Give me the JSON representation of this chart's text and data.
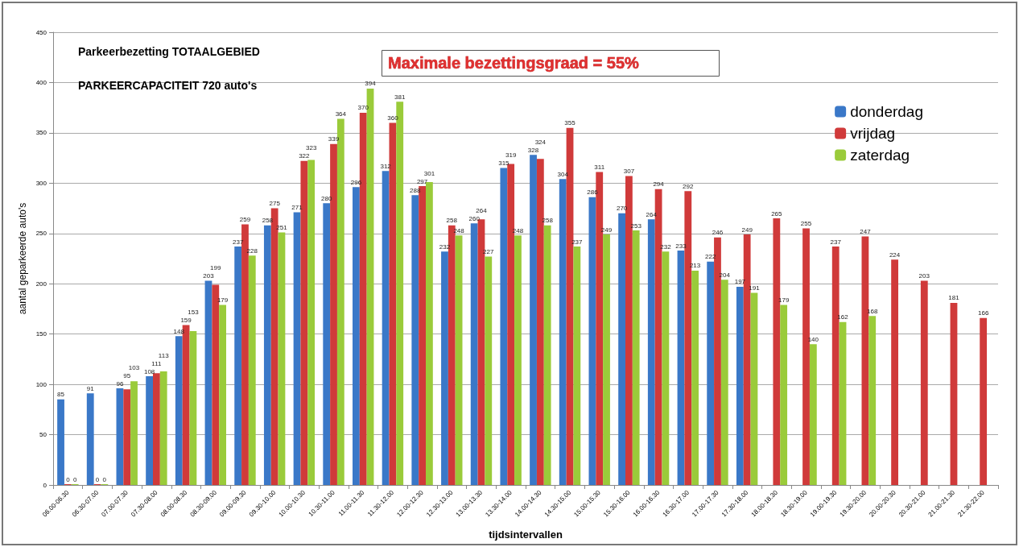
{
  "chart_data": {
    "type": "bar",
    "title": "Parkeerbezetting TOTAALGEBIED",
    "subtitle": "PARKEERCAPACITEIT 720 auto's",
    "annotations": [
      "Maximale bezettingsgraad = 55%"
    ],
    "xlabel": "tijdsintervallen",
    "ylabel": "aantal geparkeerde auto's",
    "categories": [
      "06.00-06.30",
      "06.30-07.00",
      "07.00-07.30",
      "07.30-08.00",
      "08.00-08.30",
      "08.30-09.00",
      "09.00-09.30",
      "09.30-10.00",
      "10.00-10.30",
      "10.30-11.00",
      "11.00-11.30",
      "11.30-12.00",
      "12.00-12.30",
      "12.30-13.00",
      "13.00-13.30",
      "13.30-14.00",
      "14.00-14.30",
      "14.30-15.00",
      "15.00-15.30",
      "15.30-16.00",
      "16.00-16.30",
      "16.30-17.00",
      "17.00-17.30",
      "17.30-18.00",
      "18.00-18.30",
      "18.30-19.00",
      "19.00-19.30",
      "19.30-20.00",
      "20.00-20.30",
      "20.30-21.00",
      "21.00-21.30",
      "21.30-22.00"
    ],
    "series": [
      {
        "name": "donderdag",
        "color": "#3a78c8",
        "values": [
          85,
          91,
          96,
          108,
          148,
          203,
          237,
          258,
          271,
          280,
          296,
          312,
          288,
          232,
          260,
          315,
          328,
          304,
          286,
          270,
          264,
          233,
          222,
          197,
          null,
          null,
          null,
          null,
          null,
          null,
          null,
          null
        ]
      },
      {
        "name": "vrijdag",
        "color": "#d03a3a",
        "values": [
          0,
          0,
          95,
          111,
          159,
          199,
          259,
          275,
          322,
          339,
          370,
          360,
          297,
          258,
          264,
          319,
          324,
          355,
          311,
          307,
          294,
          292,
          246,
          249,
          265,
          255,
          237,
          247,
          224,
          203,
          181,
          166
        ]
      },
      {
        "name": "zaterdag",
        "color": "#9acb3a",
        "values": [
          0,
          0,
          103,
          113,
          153,
          179,
          228,
          251,
          323,
          364,
          394,
          381,
          301,
          248,
          227,
          248,
          258,
          237,
          249,
          253,
          232,
          213,
          204,
          191,
          179,
          140,
          162,
          168,
          null,
          null,
          null,
          null
        ]
      }
    ],
    "ylim": [
      0,
      450
    ],
    "yticks": [
      0,
      50,
      100,
      150,
      200,
      250,
      300,
      350,
      400,
      450
    ],
    "grid": "y",
    "legend": "top right",
    "data_labels": true
  }
}
